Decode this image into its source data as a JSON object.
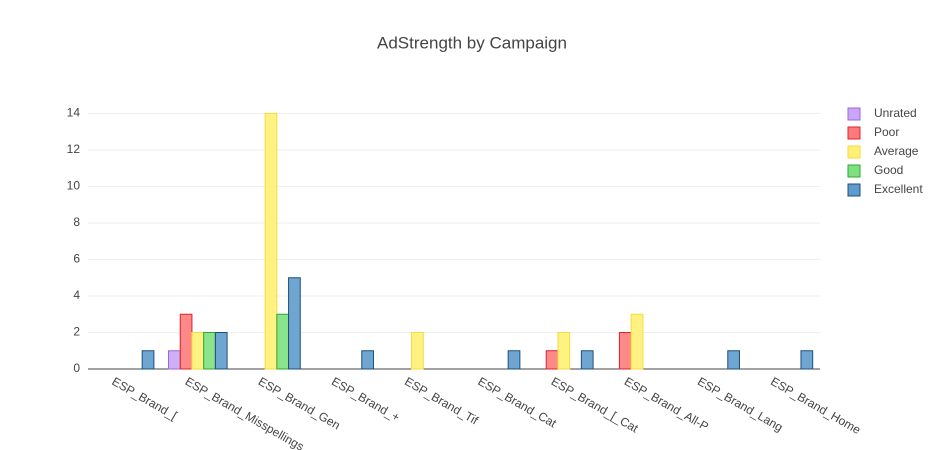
{
  "chart_data": {
    "type": "bar",
    "title": "AdStrength by Campaign",
    "categories": [
      "ESP_Brand_[",
      "ESP_Brand_Misspellings",
      "ESP_Brand_Gen",
      "ESP_Brand_+",
      "ESP_Brand_Tif",
      "ESP_Brand_Cat",
      "ESP_Brand_[_Cat",
      "ESP_Brand_All-P",
      "ESP_Brand_Lang",
      "ESP_Brand_Home"
    ],
    "series": [
      {
        "name": "Unrated",
        "color": "#c9a6f7",
        "border": "#9a66e0",
        "values": [
          0,
          1,
          0,
          0,
          0,
          0,
          0,
          0,
          0,
          0
        ]
      },
      {
        "name": "Poor",
        "color": "#ff7b7b",
        "border": "#e0202a",
        "values": [
          0,
          3,
          0,
          0,
          0,
          0,
          1,
          2,
          0,
          0
        ]
      },
      {
        "name": "Average",
        "color": "#fff176",
        "border": "#f5dc3a",
        "values": [
          0,
          2,
          14,
          0,
          2,
          0,
          2,
          3,
          0,
          0
        ]
      },
      {
        "name": "Good",
        "color": "#7ee07e",
        "border": "#2ea82e",
        "values": [
          0,
          2,
          3,
          0,
          0,
          0,
          0,
          0,
          0,
          0
        ]
      },
      {
        "name": "Excellent",
        "color": "#5e9ccc",
        "border": "#1f4f7a",
        "values": [
          1,
          2,
          5,
          1,
          0,
          1,
          1,
          0,
          1,
          1
        ]
      }
    ],
    "ylim": [
      0,
      14.74
    ],
    "yticks": [
      0,
      2,
      4,
      6,
      8,
      10,
      12,
      14
    ],
    "grid": true,
    "legend": "top-right"
  }
}
